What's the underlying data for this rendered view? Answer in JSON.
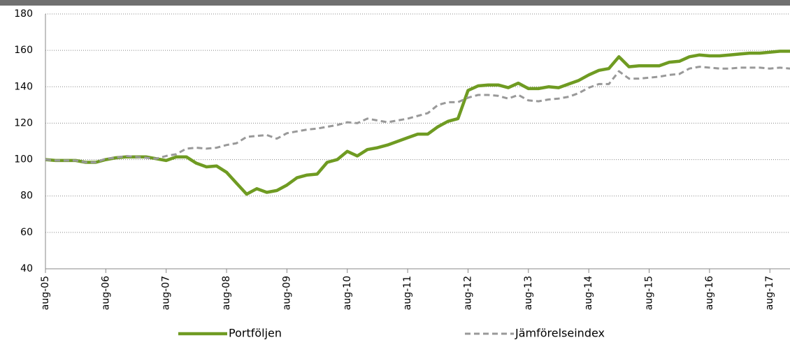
{
  "chart_data": {
    "type": "line",
    "categories": [
      "aug-05",
      null,
      null,
      null,
      null,
      null,
      "aug-06",
      null,
      null,
      null,
      null,
      null,
      "aug-07",
      null,
      null,
      null,
      null,
      null,
      "aug-08",
      null,
      null,
      null,
      null,
      null,
      "aug-09",
      null,
      null,
      null,
      null,
      null,
      "aug-10",
      null,
      null,
      null,
      null,
      null,
      "aug-11",
      null,
      null,
      null,
      null,
      null,
      "aug-12",
      null,
      null,
      null,
      null,
      null,
      "aug-13",
      null,
      null,
      null,
      null,
      null,
      "aug-14",
      null,
      null,
      null,
      null,
      null,
      "aug-15",
      null,
      null,
      null,
      null,
      null,
      "aug-16",
      null,
      null,
      null,
      null,
      null,
      "aug-17",
      null,
      null
    ],
    "series": [
      {
        "name": "Portföljen",
        "color": "#6f9b22",
        "dashed": false,
        "values": [
          100,
          99.5,
          99.5,
          99.5,
          98.5,
          98.5,
          100,
          101,
          101.5,
          101.5,
          101.5,
          100.5,
          99.5,
          101.5,
          101.5,
          98,
          96,
          96.5,
          93,
          87,
          81,
          84,
          82,
          83,
          86,
          90,
          91.5,
          92,
          98.5,
          100,
          104.5,
          102,
          105.5,
          106.5,
          108,
          110,
          112,
          114,
          114,
          118,
          121,
          122.5,
          138,
          140.5,
          141,
          141,
          139.5,
          142,
          139,
          139,
          140,
          139.5,
          141.5,
          143.5,
          146.5,
          149,
          150,
          156.5,
          151,
          151.5,
          151.5,
          151.5,
          153.5,
          154,
          156.5,
          157.5,
          157,
          157,
          157.5,
          158,
          158.5,
          158.5,
          159,
          159.5,
          159.5
        ]
      },
      {
        "name": "Jämförelseindex",
        "color": "#999999",
        "dashed": true,
        "values": [
          100,
          99.5,
          99.5,
          99.5,
          98.5,
          98.5,
          100.5,
          101,
          102,
          101.5,
          101,
          100.5,
          102,
          103,
          106,
          106.5,
          106,
          106.5,
          108,
          109,
          112.5,
          113,
          113.5,
          111.5,
          114.5,
          115.5,
          116.5,
          117,
          118,
          119,
          120.5,
          120,
          122.5,
          121.5,
          120.5,
          121.5,
          122.5,
          124,
          125.5,
          130,
          131.5,
          131.5,
          134,
          135.5,
          135.5,
          135,
          133.5,
          135.5,
          132.5,
          132,
          133,
          133.5,
          134.5,
          136.5,
          139.5,
          141.5,
          141.5,
          148.5,
          144.5,
          144.5,
          145,
          145.5,
          146.5,
          147,
          150,
          151,
          150.5,
          150,
          150,
          150.5,
          150.5,
          150.5,
          150,
          150.5,
          150
        ]
      }
    ],
    "ylim": [
      40,
      180
    ],
    "yticks": [
      40,
      60,
      80,
      100,
      120,
      140,
      160,
      180
    ],
    "grid": true,
    "legend": "bottom"
  }
}
